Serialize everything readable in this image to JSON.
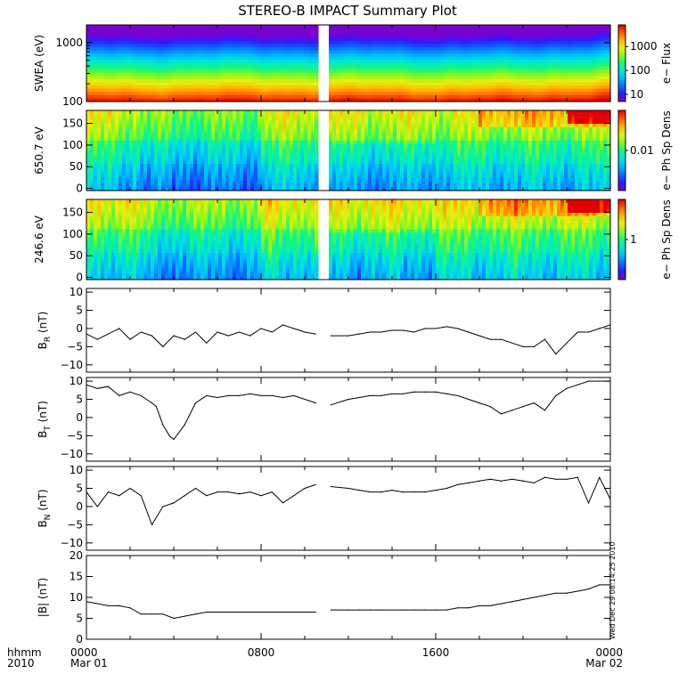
{
  "title": "STEREO-B IMPACT Summary Plot",
  "stamp": "Wed Dec 29 08:14:25 2010",
  "time_axis": {
    "row_label_1": "hhmm",
    "row_label_2": "2010",
    "range_hours": [
      0,
      24
    ],
    "ticks": [
      {
        "hour": 0,
        "label": "0000",
        "sub": "Mar 01"
      },
      {
        "hour": 8,
        "label": "0800",
        "sub": ""
      },
      {
        "hour": 16,
        "label": "1600",
        "sub": ""
      },
      {
        "hour": 24,
        "label": "0000",
        "sub": "Mar 02"
      }
    ],
    "data_gap_hours": [
      10.65,
      11.05
    ]
  },
  "colors": {
    "rainbow": [
      "#7a00d0",
      "#2a1cff",
      "#0a6cff",
      "#00b7ff",
      "#00e8d0",
      "#18f57a",
      "#8cf51a",
      "#e7f010",
      "#ffb400",
      "#ff5a00",
      "#e00000"
    ],
    "line": "#000000",
    "gap": "#ffffff"
  },
  "chart_data": [
    {
      "type": "heatmap",
      "name": "swea",
      "ylabel": "SWEA (eV)",
      "yscale": "log",
      "ylim": [
        100,
        2000
      ],
      "yticks": [
        {
          "v": 100,
          "label": "100"
        },
        {
          "v": 1000,
          "label": "1000"
        }
      ],
      "colorbar": {
        "label": "e− Flux",
        "scale": "log",
        "range": [
          5,
          8000
        ],
        "ticks": [
          {
            "v": 10,
            "label": "10"
          },
          {
            "v": 100,
            "label": "100"
          },
          {
            "v": 1000,
            "label": "1000"
          }
        ]
      }
    },
    {
      "type": "heatmap",
      "name": "pad650",
      "ylabel": "650.7 eV",
      "yscale": "linear",
      "ylim": [
        -5,
        180
      ],
      "yticks": [
        {
          "v": 0,
          "label": "0"
        },
        {
          "v": 50,
          "label": "50"
        },
        {
          "v": 100,
          "label": "100"
        },
        {
          "v": 150,
          "label": "150"
        }
      ],
      "colorbar": {
        "label": "e− Ph Sp Dens",
        "scale": "log",
        "range": [
          0.001,
          0.1
        ],
        "ticks": [
          {
            "v": 0.01,
            "label": "0.01"
          }
        ]
      }
    },
    {
      "type": "heatmap",
      "name": "pad246",
      "ylabel": "246.6 eV",
      "yscale": "linear",
      "ylim": [
        -5,
        180
      ],
      "yticks": [
        {
          "v": 0,
          "label": "0"
        },
        {
          "v": 50,
          "label": "50"
        },
        {
          "v": 100,
          "label": "100"
        },
        {
          "v": 150,
          "label": "150"
        }
      ],
      "colorbar": {
        "label": "e− Ph Sp Dens",
        "scale": "log",
        "range": [
          0.1,
          10
        ],
        "ticks": [
          {
            "v": 1,
            "label": "1"
          }
        ]
      }
    },
    {
      "type": "line",
      "name": "br",
      "ylabel_main": "B",
      "ylabel_sub": "R",
      "ylabel_unit": " (nT)",
      "ylim": [
        -12,
        11
      ],
      "yticks": [
        {
          "v": -10,
          "label": "−10"
        },
        {
          "v": -5,
          "label": "−5"
        },
        {
          "v": 0,
          "label": "0"
        },
        {
          "v": 5,
          "label": "5"
        },
        {
          "v": 10,
          "label": "10"
        }
      ],
      "x": [
        0,
        0.5,
        1,
        1.5,
        2,
        2.5,
        3,
        3.5,
        4,
        4.5,
        5,
        5.5,
        6,
        6.5,
        7,
        7.5,
        8,
        8.5,
        9,
        9.5,
        10,
        10.5,
        11.2,
        12,
        12.5,
        13,
        13.5,
        14,
        14.5,
        15,
        15.5,
        16,
        16.5,
        17,
        17.5,
        18,
        18.5,
        19,
        19.5,
        20,
        20.5,
        21,
        21.5,
        22,
        22.5,
        23,
        23.5,
        24
      ],
      "y": [
        -1.5,
        -3,
        -1.5,
        0,
        -3,
        -1,
        -2,
        -5,
        -2,
        -3,
        -1,
        -4,
        -1,
        -2,
        -1,
        -2,
        0,
        -1,
        1,
        0,
        -1,
        -1.5,
        -2,
        -2,
        -1.5,
        -1,
        -1,
        -0.5,
        -0.5,
        -1,
        0,
        0,
        0.5,
        0,
        -1,
        -2,
        -3,
        -3,
        -4,
        -5,
        -5,
        -3,
        -7,
        -4,
        -1,
        -1,
        0,
        1
      ]
    },
    {
      "type": "line",
      "name": "bt",
      "ylabel_main": "B",
      "ylabel_sub": "T",
      "ylabel_unit": " (nT)",
      "ylim": [
        -12,
        11
      ],
      "yticks": [
        {
          "v": -10,
          "label": "−10"
        },
        {
          "v": -5,
          "label": "−5"
        },
        {
          "v": 0,
          "label": "0"
        },
        {
          "v": 5,
          "label": "5"
        },
        {
          "v": 10,
          "label": "10"
        }
      ],
      "x": [
        0,
        0.5,
        1,
        1.5,
        2,
        2.5,
        3,
        3.2,
        3.5,
        3.8,
        4,
        4.5,
        5,
        5.5,
        6,
        6.5,
        7,
        7.5,
        8,
        8.5,
        9,
        9.5,
        10,
        10.5,
        11.2,
        12,
        12.5,
        13,
        13.5,
        14,
        14.5,
        15,
        15.5,
        16,
        16.5,
        17,
        17.5,
        18,
        18.5,
        19,
        19.5,
        20,
        20.5,
        21,
        21.5,
        22,
        22.5,
        23,
        23.5,
        24
      ],
      "y": [
        9,
        8,
        8.5,
        6,
        7,
        6,
        4,
        3,
        -2,
        -5,
        -6,
        -2,
        4,
        6,
        5.5,
        6,
        6,
        6.5,
        6,
        6,
        5.5,
        6,
        5,
        4,
        3.5,
        5,
        5.5,
        6,
        6,
        6.5,
        6.5,
        7,
        7,
        7,
        6.5,
        6,
        5,
        4,
        3,
        1,
        2,
        3,
        4,
        2,
        6,
        8,
        9,
        10,
        10,
        10
      ]
    },
    {
      "type": "line",
      "name": "bn",
      "ylabel_main": "B",
      "ylabel_sub": "N",
      "ylabel_unit": " (nT)",
      "ylim": [
        -12,
        11
      ],
      "yticks": [
        {
          "v": -10,
          "label": "−10"
        },
        {
          "v": -5,
          "label": "−5"
        },
        {
          "v": 0,
          "label": "0"
        },
        {
          "v": 5,
          "label": "5"
        },
        {
          "v": 10,
          "label": "10"
        }
      ],
      "x": [
        0,
        0.5,
        1,
        1.5,
        2,
        2.5,
        3,
        3.5,
        4,
        4.5,
        5,
        5.5,
        6,
        6.5,
        7,
        7.5,
        8,
        8.5,
        9,
        9.5,
        10,
        10.5,
        11.2,
        12,
        12.5,
        13,
        13.5,
        14,
        14.5,
        15,
        15.5,
        16,
        16.5,
        17,
        17.5,
        18,
        18.5,
        19,
        19.5,
        20,
        20.5,
        21,
        21.5,
        22,
        22.5,
        23,
        23.5,
        24
      ],
      "y": [
        4,
        0,
        4,
        3,
        5,
        3,
        -5,
        0,
        1,
        3,
        5,
        3,
        4,
        4,
        3.5,
        4,
        3,
        4,
        1,
        3,
        5,
        6,
        5.5,
        5,
        4.5,
        4,
        4,
        4.5,
        4,
        4,
        4,
        4.5,
        5,
        6,
        6.5,
        7,
        7.5,
        7,
        7.5,
        7,
        6.5,
        8,
        7.5,
        7.5,
        8,
        1,
        8,
        2
      ]
    },
    {
      "type": "line",
      "name": "bmag",
      "ylabel_main": "|B|",
      "ylabel_sub": "",
      "ylabel_unit": " (nT)",
      "ylim": [
        0,
        20
      ],
      "yticks": [
        {
          "v": 0,
          "label": "0"
        },
        {
          "v": 5,
          "label": "5"
        },
        {
          "v": 10,
          "label": "10"
        },
        {
          "v": 15,
          "label": "15"
        },
        {
          "v": 20,
          "label": "20"
        }
      ],
      "x": [
        0,
        0.5,
        1,
        1.5,
        2,
        2.5,
        3,
        3.5,
        4,
        4.5,
        5,
        5.5,
        6,
        6.5,
        7,
        7.5,
        8,
        8.5,
        9,
        9.5,
        10,
        10.5,
        11.2,
        12,
        12.5,
        13,
        13.5,
        14,
        14.5,
        15,
        15.5,
        16,
        16.5,
        17,
        17.5,
        18,
        18.5,
        19,
        19.5,
        20,
        20.5,
        21,
        21.5,
        22,
        22.5,
        23,
        23.5,
        24
      ],
      "y": [
        9,
        8.5,
        8,
        8,
        7.5,
        6,
        6,
        6,
        5,
        5.5,
        6,
        6.5,
        6.5,
        6.5,
        6.5,
        6.5,
        6.5,
        6.5,
        6.5,
        6.5,
        6.5,
        6.5,
        7,
        7,
        7,
        7,
        7,
        7,
        7,
        7,
        7,
        7,
        7,
        7.5,
        7.5,
        8,
        8,
        8.5,
        9,
        9.5,
        10,
        10.5,
        11,
        11,
        11.5,
        12,
        13,
        13
      ]
    }
  ]
}
